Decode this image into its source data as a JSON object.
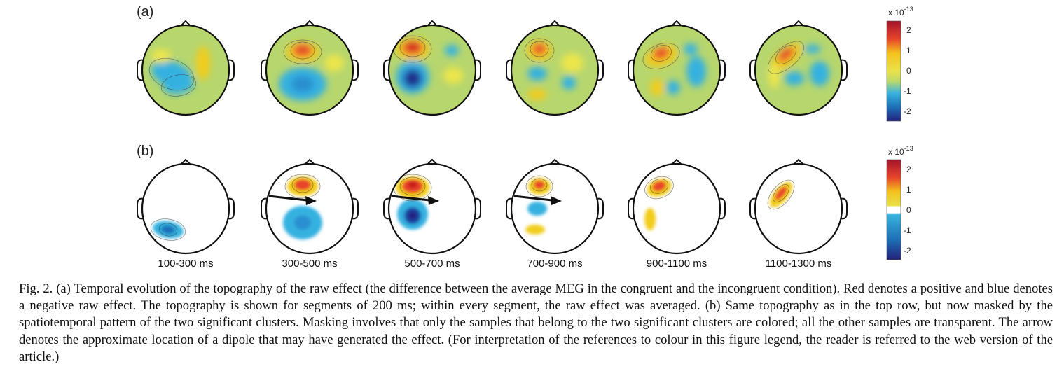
{
  "figure": {
    "panel_a_label": "(a)",
    "panel_b_label": "(b)",
    "time_windows": [
      "100-300 ms",
      "300-500 ms",
      "500-700 ms",
      "700-900 ms",
      "900-1100 ms",
      "1100-1300 ms"
    ],
    "colorbar": {
      "exponent_label": "x 10",
      "exponent_power": "-13",
      "ticks": [
        "2",
        "1",
        "0",
        "-1",
        "-2"
      ],
      "colors": [
        "#a3122a",
        "#e8452a",
        "#f4c21c",
        "#e9e24a",
        "#bcd96a",
        "#39b3de",
        "#1c6fb6",
        "#24207a"
      ]
    }
  },
  "caption": {
    "text": "Fig. 2.  (a) Temporal evolution of the topography of the raw effect (the difference between the average MEG in the congruent and the incongruent condition). Red denotes a positive and blue denotes a negative raw effect. The topography is shown for segments of 200 ms; within every segment, the raw effect was averaged. (b) Same topography as in the top row, but now masked by the spatiotemporal pattern of the two significant clusters. Masking involves that only the samples that belong to the two significant clusters are colored; all the other samples are transparent. The arrow denotes the approximate location of a dipole that may have generated the effect. (For interpretation of the references to colour in this figure legend, the reader is referred to the web version of the article.)"
  }
}
